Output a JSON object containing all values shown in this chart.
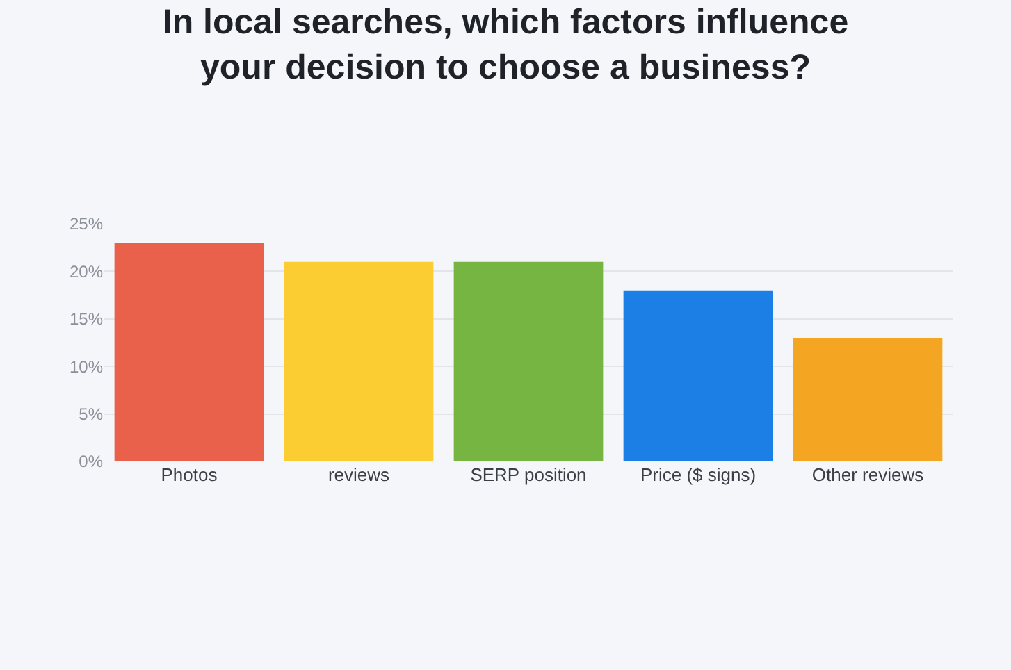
{
  "chart_data": {
    "type": "bar",
    "title": "In local searches, which factors influence\nyour decision to choose a business?",
    "categories": [
      "Photos",
      "reviews",
      "SERP position",
      "Price ($ signs)",
      "Other reviews"
    ],
    "values": [
      23,
      21,
      21,
      18,
      13
    ],
    "colors": [
      "#e9604b",
      "#fbcd33",
      "#76b542",
      "#1b7fe6",
      "#f4a623"
    ],
    "ylim": [
      0,
      25
    ],
    "yticks": [
      {
        "value": 0,
        "label": "0%"
      },
      {
        "value": 5,
        "label": "5%"
      },
      {
        "value": 10,
        "label": "10%"
      },
      {
        "value": 15,
        "label": "15%"
      },
      {
        "value": 20,
        "label": "20%"
      },
      {
        "value": 25,
        "label": "25%"
      }
    ],
    "grid": "y",
    "legend": false
  }
}
